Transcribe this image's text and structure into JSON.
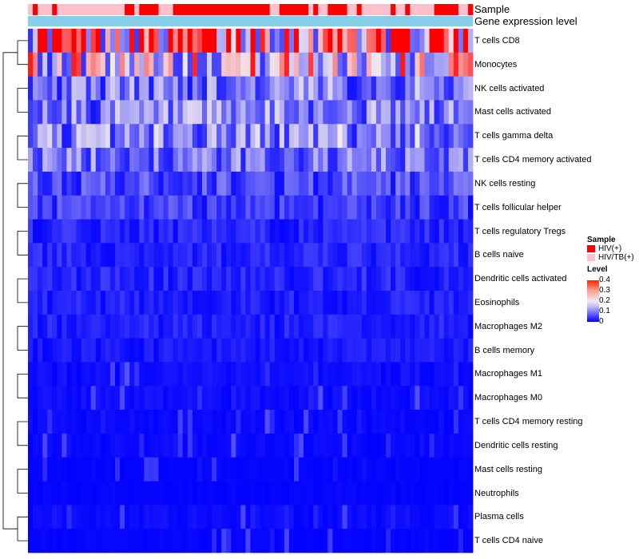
{
  "chart_data": {
    "type": "heatmap",
    "annotations": {
      "sample_label": "Sample",
      "expression_label": "Gene expression level",
      "samples": [
        "HIV/TB(+)",
        "HIV(+)",
        "HIV/TB(+)",
        "HIV/TB(+)",
        "HIV/TB(+)",
        "HIV(+)",
        "HIV/TB(+)",
        "HIV/TB(+)",
        "HIV/TB(+)",
        "HIV/TB(+)",
        "HIV/TB(+)",
        "HIV/TB(+)",
        "HIV/TB(+)",
        "HIV/TB(+)",
        "HIV/TB(+)",
        "HIV/TB(+)",
        "HIV/TB(+)",
        "HIV/TB(+)",
        "HIV/TB(+)",
        "HIV/TB(+)",
        "HIV(+)",
        "HIV(+)",
        "HIV/TB(+)",
        "HIV(+)",
        "HIV(+)",
        "HIV(+)",
        "HIV(+)",
        "HIV/TB(+)",
        "HIV/TB(+)",
        "HIV/TB(+)",
        "HIV(+)",
        "HIV(+)",
        "HIV(+)",
        "HIV(+)",
        "HIV(+)",
        "HIV(+)",
        "HIV(+)",
        "HIV(+)",
        "HIV(+)",
        "HIV(+)",
        "HIV(+)",
        "HIV(+)",
        "HIV(+)",
        "HIV(+)",
        "HIV(+)",
        "HIV(+)",
        "HIV(+)",
        "HIV(+)",
        "HIV(+)",
        "HIV(+)",
        "HIV/TB(+)",
        "HIV/TB(+)",
        "HIV(+)",
        "HIV(+)",
        "HIV(+)",
        "HIV(+)",
        "HIV(+)",
        "HIV(+)",
        "HIV/TB(+)",
        "HIV(+)",
        "HIV/TB(+)",
        "HIV/TB(+)",
        "HIV(+)",
        "HIV(+)",
        "HIV(+)",
        "HIV(+)",
        "HIV/TB(+)",
        "HIV/TB(+)",
        "HIV(+)",
        "HIV/TB(+)",
        "HIV/TB(+)",
        "HIV/TB(+)",
        "HIV/TB(+)",
        "HIV/TB(+)",
        "HIV/TB(+)",
        "HIV(+)",
        "HIV/TB(+)",
        "HIV/TB(+)",
        "HIV(+)",
        "HIV/TB(+)",
        "HIV/TB(+)",
        "HIV/TB(+)",
        "HIV/TB(+)",
        "HIV/TB(+)",
        "HIV(+)",
        "HIV(+)",
        "HIV(+)",
        "HIV(+)",
        "HIV(+)",
        "HIV/TB(+)",
        "HIV/TB(+)",
        "HIV(+)"
      ]
    },
    "rows": [
      "T cells CD8",
      "Monocytes",
      "NK cells activated",
      "Mast cells activated",
      "T cells gamma delta",
      "T cells CD4 memory activated",
      "NK cells resting",
      "T cells follicular helper",
      "T cells regulatory  Tregs",
      "B cells naive",
      "Dendritic cells activated",
      "Eosinophils",
      "Macrophages M2",
      "B cells memory",
      "Macrophages M1",
      "Macrophages M0",
      "T cells CD4 memory resting",
      "Dendritic cells resting",
      "Mast cells resting",
      "Neutrophils",
      "Plasma cells",
      "T cells CD4 naive"
    ],
    "row_means": [
      0.3,
      0.21,
      0.1,
      0.1,
      0.11,
      0.09,
      0.06,
      0.05,
      0.03,
      0.03,
      0.03,
      0.025,
      0.025,
      0.02,
      0.012,
      0.012,
      0.008,
      0.008,
      0.004,
      0.004,
      0.01,
      0.004
    ],
    "n_columns": 92,
    "color_scale": {
      "min": 0,
      "max": 0.4,
      "low": "#0000ff",
      "mid": "#f2eaf0",
      "high": "#ff0000"
    },
    "dendrogram_branches": [
      [
        0,
        1
      ],
      [
        2,
        3
      ],
      [
        4,
        5
      ],
      [
        6,
        7
      ],
      [
        8,
        9
      ],
      [
        10,
        11
      ],
      [
        12,
        13
      ],
      [
        14,
        15
      ],
      [
        16,
        17
      ],
      [
        18,
        19
      ],
      [
        20,
        21
      ]
    ],
    "legend": {
      "sample_title": "Sample",
      "sample_entries": [
        {
          "label": "HIV(+)",
          "color": "#ff0000"
        },
        {
          "label": "HIV/TB(+)",
          "color": "#ffc0cb"
        }
      ],
      "level_title": "Level",
      "level_ticks": [
        "0.4",
        "0.3",
        "0.2",
        "0.1",
        "0"
      ]
    }
  },
  "colors": {
    "hiv": "#ff0000",
    "hivtb": "#ffc0cb",
    "expression_bar": "#87ceeb"
  }
}
